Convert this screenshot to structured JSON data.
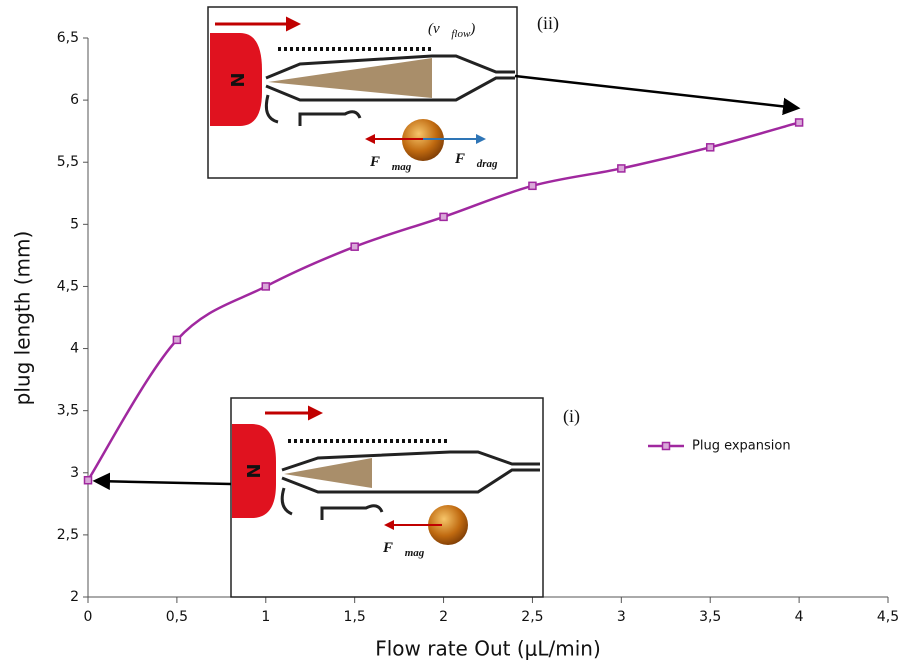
{
  "chart_data": {
    "type": "line",
    "xlabel": "Flow rate Out (μL/min)",
    "ylabel": "plug length (mm)",
    "x": [
      0,
      0.5,
      1,
      1.5,
      2,
      2.5,
      3,
      3.5,
      4
    ],
    "series": [
      {
        "name": "Plug expansion",
        "color": "#a0289f",
        "values": [
          2.94,
          4.07,
          4.5,
          4.82,
          5.06,
          5.31,
          5.45,
          5.62,
          5.82
        ]
      }
    ],
    "xlim": [
      0,
      4.5
    ],
    "ylim": [
      2,
      6.5
    ],
    "xticks": [
      0,
      {
        "value": 0.5,
        "label": "0,5"
      },
      1,
      {
        "value": 1.5,
        "label": "1,5"
      },
      2,
      {
        "value": 2.5,
        "label": "2,5"
      },
      3,
      {
        "value": 3.5,
        "label": "3,5"
      },
      4,
      {
        "value": 4.5,
        "label": "4,5"
      }
    ],
    "yticks": [
      2,
      {
        "value": 2.5,
        "label": "2,5"
      },
      3,
      {
        "value": 3.5,
        "label": "3,5"
      },
      4,
      {
        "value": 4.5,
        "label": "4,5"
      },
      5,
      {
        "value": 5.5,
        "label": "5,5"
      },
      6,
      {
        "value": 6.5,
        "label": "6,5"
      }
    ],
    "legend": "right",
    "annotations": {
      "inset_ii": {
        "label": "(ii)",
        "magnet": "N",
        "velocity": [
          "(v⃗",
          "flow",
          ")"
        ],
        "f_mag": [
          "F⃗",
          "mag"
        ],
        "f_drag": [
          "F⃗",
          "drag"
        ]
      },
      "inset_i": {
        "label": "(i)",
        "magnet": "N",
        "f_mag": [
          "F⃗",
          "mag"
        ]
      }
    }
  }
}
